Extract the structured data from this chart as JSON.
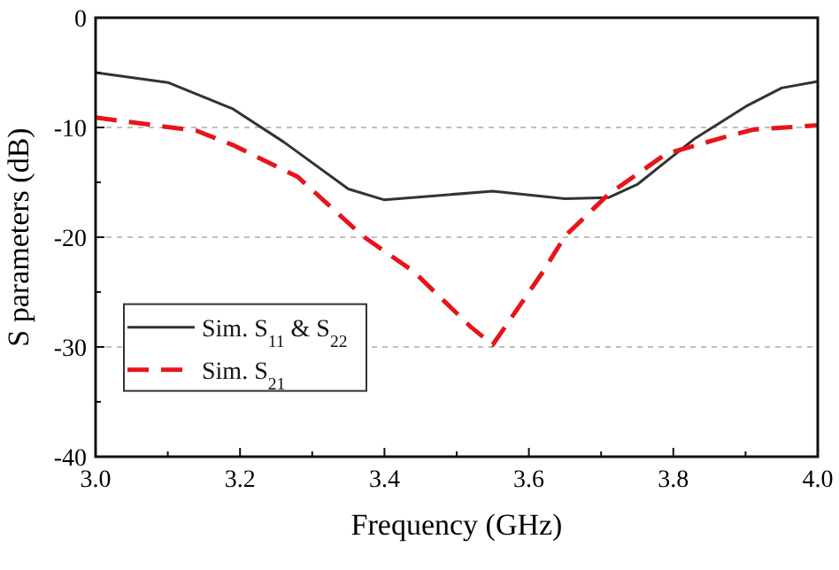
{
  "chart_data": {
    "type": "line",
    "xlabel": "Frequency (GHz)",
    "ylabel": "S parameters (dB)",
    "xlim": [
      3.0,
      4.0
    ],
    "ylim": [
      -40,
      0
    ],
    "xticks": [
      {
        "value": 3.0,
        "label": "3.0"
      },
      {
        "value": 3.1,
        "label": null
      },
      {
        "value": 3.2,
        "label": "3.2"
      },
      {
        "value": 3.3,
        "label": null
      },
      {
        "value": 3.4,
        "label": "3.4"
      },
      {
        "value": 3.5,
        "label": null
      },
      {
        "value": 3.6,
        "label": "3.6"
      },
      {
        "value": 3.7,
        "label": null
      },
      {
        "value": 3.8,
        "label": "3.8"
      },
      {
        "value": 3.9,
        "label": null
      },
      {
        "value": 4.0,
        "label": "4.0"
      }
    ],
    "yticks": [
      -40,
      {
        "value": -35,
        "label": null
      },
      -30,
      {
        "value": -25,
        "label": null
      },
      -20,
      {
        "value": -15,
        "label": null
      },
      -10,
      {
        "value": -5,
        "label": null
      },
      0
    ],
    "grid": "y",
    "legend": "bottom left",
    "marker": "none",
    "series": [
      {
        "name": "Sim. S$_{11}$ & S$_{22}$",
        "color": "#333333",
        "line_style": "solid",
        "x": [
          3.0,
          3.1,
          3.19,
          3.26,
          3.35,
          3.4,
          3.55,
          3.65,
          3.71,
          3.75,
          3.83,
          3.9,
          3.95,
          4.0
        ],
        "values": [
          -5.0,
          -5.9,
          -8.3,
          -11.3,
          -15.6,
          -16.6,
          -15.8,
          -16.5,
          -16.4,
          -15.2,
          -11.0,
          -8.1,
          -6.4,
          -5.8
        ]
      },
      {
        "name": "Sim. S$_{21}$",
        "color": "#e8141a",
        "line_style": "dashed",
        "x": [
          3.0,
          3.14,
          3.19,
          3.28,
          3.37,
          3.44,
          3.52,
          3.55,
          3.62,
          3.65,
          3.71,
          3.79,
          3.87,
          3.91,
          4.0
        ],
        "values": [
          -9.1,
          -10.3,
          -11.6,
          -14.5,
          -19.9,
          -23.1,
          -28.2,
          -29.8,
          -23.1,
          -19.9,
          -16.1,
          -12.4,
          -10.9,
          -10.2,
          -9.8
        ]
      }
    ]
  }
}
